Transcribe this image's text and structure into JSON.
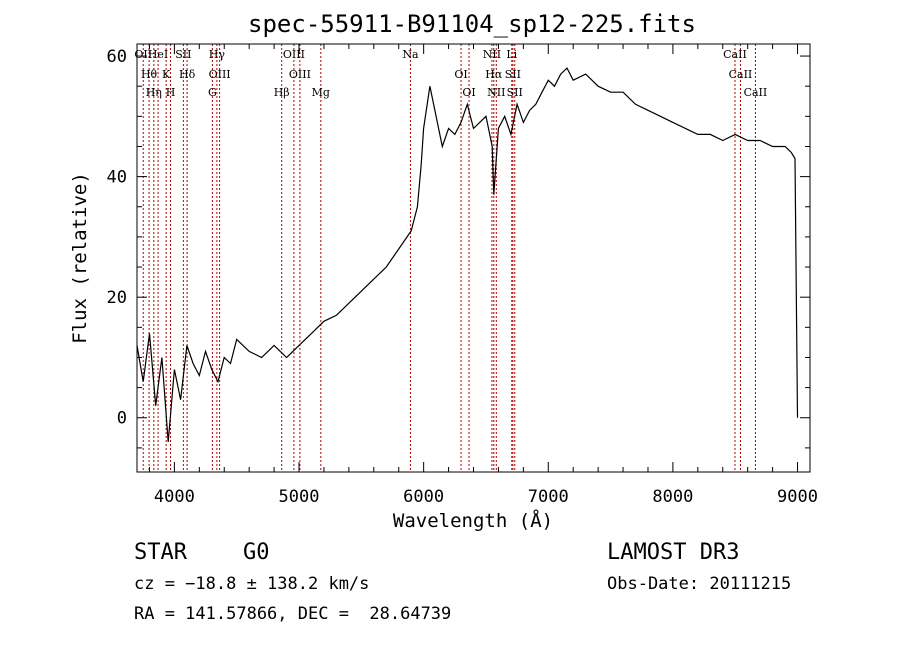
{
  "chart_data": {
    "type": "line",
    "title": "spec-55911-B91104_sp12-225.fits",
    "xlabel": "Wavelength (Å)",
    "ylabel": "Flux (relative)",
    "xlim": [
      3700,
      9100
    ],
    "ylim": [
      -9,
      62
    ],
    "xticks": [
      4000,
      5000,
      6000,
      7000,
      8000,
      9000
    ],
    "yticks": [
      0,
      20,
      40,
      60
    ],
    "grid": false,
    "series": [
      {
        "x": [
          3700,
          3750,
          3800,
          3850,
          3900,
          3950,
          4000,
          4050,
          4100,
          4150,
          4200,
          4250,
          4300,
          4350,
          4400,
          4450,
          4500,
          4600,
          4700,
          4800,
          4900,
          5000,
          5100,
          5200,
          5300,
          5400,
          5500,
          5600,
          5700,
          5800,
          5900,
          5950,
          5980,
          6000,
          6050,
          6100,
          6150,
          6200,
          6250,
          6300,
          6350,
          6400,
          6450,
          6500,
          6550,
          6563,
          6600,
          6650,
          6700,
          6750,
          6800,
          6850,
          6900,
          6950,
          7000,
          7050,
          7100,
          7150,
          7200,
          7300,
          7400,
          7500,
          7600,
          7700,
          7800,
          7900,
          8000,
          8100,
          8200,
          8300,
          8400,
          8500,
          8600,
          8700,
          8800,
          8900,
          8950,
          8980,
          9000
        ],
        "y": [
          12,
          6,
          14,
          2,
          10,
          -4,
          8,
          3,
          12,
          9,
          7,
          11,
          8,
          6,
          10,
          9,
          13,
          11,
          10,
          12,
          10,
          12,
          14,
          16,
          17,
          19,
          21,
          23,
          25,
          28,
          31,
          35,
          42,
          48,
          55,
          50,
          45,
          48,
          47,
          49,
          52,
          48,
          49,
          50,
          45,
          37,
          48,
          50,
          47,
          52,
          49,
          51,
          52,
          54,
          56,
          55,
          57,
          58,
          56,
          57,
          55,
          54,
          54,
          52,
          51,
          50,
          49,
          48,
          47,
          47,
          46,
          47,
          46,
          46,
          45,
          45,
          44,
          43,
          0
        ]
      }
    ],
    "lines": [
      {
        "x": 3750,
        "label": "OII"
      },
      {
        "x": 3797,
        "label": "Hθ"
      },
      {
        "x": 3835,
        "label": "Hη"
      },
      {
        "x": 3869,
        "label": "HeI"
      },
      {
        "x": 3934,
        "label": "K"
      },
      {
        "x": 3969,
        "label": "H"
      },
      {
        "x": 4072,
        "label": "SII"
      },
      {
        "x": 4102,
        "label": "Hδ"
      },
      {
        "x": 4305,
        "label": "G"
      },
      {
        "x": 4341,
        "label": "Hγ"
      },
      {
        "x": 4363,
        "label": "OIII"
      },
      {
        "x": 4861,
        "label": "Hβ"
      },
      {
        "x": 4959,
        "label": "OIII"
      },
      {
        "x": 5007,
        "label": "OIII"
      },
      {
        "x": 5175,
        "label": "Mg"
      },
      {
        "x": 5894,
        "label": "Na"
      },
      {
        "x": 6300,
        "label": "OI"
      },
      {
        "x": 6364,
        "label": "OI"
      },
      {
        "x": 6548,
        "label": "NII"
      },
      {
        "x": 6563,
        "label": "Hα"
      },
      {
        "x": 6583,
        "label": "NII"
      },
      {
        "x": 6707,
        "label": "Li"
      },
      {
        "x": 6716,
        "label": "SII"
      },
      {
        "x": 6731,
        "label": "SII"
      },
      {
        "x": 8498,
        "label": "CaII"
      },
      {
        "x": 8542,
        "label": "CaII"
      },
      {
        "x": 8662,
        "label": "CaII"
      }
    ]
  },
  "info": {
    "object_class": "STAR",
    "subclass": "G0",
    "survey": "LAMOST DR3",
    "redshift": "cz = −18.8 ± 138.2 km/s",
    "obs_date": "Obs-Date: 20111215",
    "coords": "RA = 141.57866, DEC =  28.64739"
  },
  "colors": {
    "line": "#000000",
    "marker": "#b00000"
  }
}
